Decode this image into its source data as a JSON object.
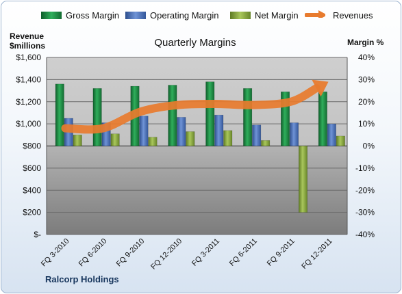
{
  "chart_data": {
    "type": "bar",
    "title": "Quarterly Margins",
    "company": "Ralcorp Holdings",
    "left_axis_label": [
      "Revenue",
      "$millions"
    ],
    "right_axis_label": "Margin %",
    "categories": [
      "FQ 3-2010",
      "FQ 6-2010",
      "FQ 9-2010",
      "FQ 12-2010",
      "FQ 3-2011",
      "FQ 6-2011",
      "FQ 9-2011",
      "FQ 12-2011"
    ],
    "left_axis": {
      "min": 0,
      "max": 1600,
      "step": 200,
      "tick_labels": [
        "$-",
        "$200",
        "$400",
        "$600",
        "$800",
        "$1,000",
        "$1,200",
        "$1,400",
        "$1,600"
      ]
    },
    "right_axis": {
      "min": -40,
      "max": 40,
      "step": 10,
      "tick_labels": [
        "-40%",
        "-30%",
        "-20%",
        "-10%",
        "0%",
        "10%",
        "20%",
        "30%",
        "40%"
      ]
    },
    "series": [
      {
        "name": "Gross Margin",
        "axis": "right",
        "type": "bar",
        "color": "#1e8a45",
        "values": [
          28,
          26,
          27,
          27.5,
          29,
          26,
          24.5,
          24.5
        ]
      },
      {
        "name": "Operating Margin",
        "axis": "right",
        "type": "bar",
        "color": "#4b72b8",
        "values": [
          12.5,
          10.5,
          13.5,
          13,
          14,
          9.5,
          10.5,
          10
        ]
      },
      {
        "name": "Net Margin",
        "axis": "right",
        "type": "bar",
        "color": "#8aab3f",
        "values": [
          5,
          5.5,
          4,
          6.5,
          7,
          2.5,
          -30,
          4.5
        ]
      },
      {
        "name": "Revenues",
        "axis": "left",
        "type": "arrow",
        "color": "#e87b2e",
        "values": [
          960,
          960,
          1110,
          1170,
          1180,
          1170,
          1200,
          1380
        ]
      }
    ],
    "colors": {
      "plot_upper": "#c8c8c8",
      "plot_lower": "#8c8c8c",
      "grid": "#6a6a6a"
    }
  }
}
